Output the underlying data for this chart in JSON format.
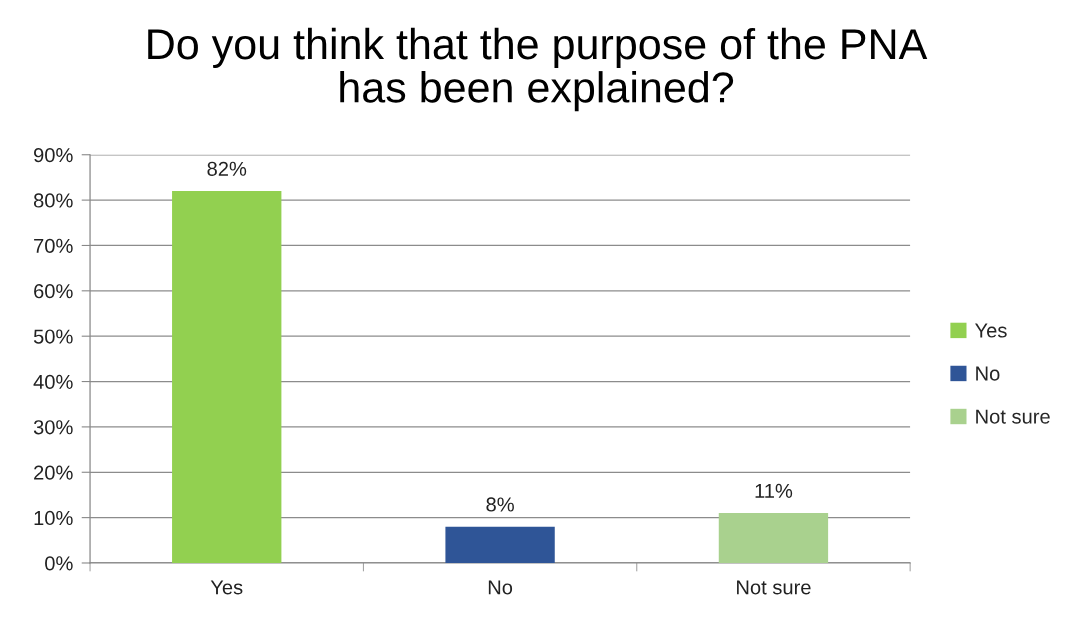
{
  "chart_data": {
    "type": "bar",
    "title": "Do you think that the purpose of the PNA\nhas been explained?",
    "categories": [
      "Yes",
      "No",
      "Not sure"
    ],
    "series": [
      {
        "name": "Yes",
        "color": "#92d050",
        "values": [
          82,
          null,
          null
        ],
        "value_labels": [
          "82%",
          null,
          null
        ]
      },
      {
        "name": "No",
        "color": "#2f5597",
        "values": [
          null,
          8,
          null
        ],
        "value_labels": [
          null,
          "8%",
          null
        ]
      },
      {
        "name": "Not sure",
        "color": "#a9d18e",
        "values": [
          null,
          null,
          11
        ],
        "value_labels": [
          null,
          null,
          "11%"
        ]
      }
    ],
    "ylim": [
      0,
      90
    ],
    "yticks": [
      {
        "value": 0,
        "label": "0%"
      },
      {
        "value": 10,
        "label": "10%"
      },
      {
        "value": 20,
        "label": "20%"
      },
      {
        "value": 30,
        "label": "30%"
      },
      {
        "value": 40,
        "label": "40%"
      },
      {
        "value": 50,
        "label": "50%"
      },
      {
        "value": 60,
        "label": "60%"
      },
      {
        "value": 70,
        "label": "70%"
      },
      {
        "value": 80,
        "label": "80%"
      },
      {
        "value": 90,
        "label": "90%"
      }
    ],
    "grid": "y",
    "legend": "right"
  }
}
